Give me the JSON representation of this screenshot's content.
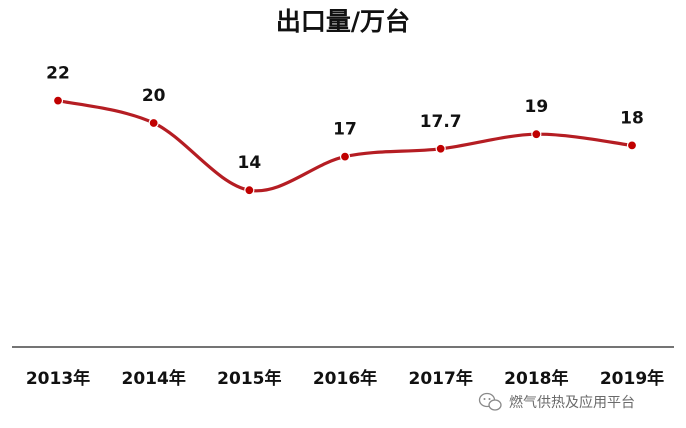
{
  "chart_data": {
    "type": "line",
    "title": "出口量/万台",
    "categories": [
      "2013年",
      "2014年",
      "2015年",
      "2016年",
      "2017年",
      "2018年",
      "2019年"
    ],
    "series": [
      {
        "values": [
          22,
          20,
          14,
          17,
          17.7,
          19,
          18
        ]
      }
    ],
    "data_labels": [
      "22",
      "20",
      "14",
      "17",
      "17.7",
      "19",
      "18"
    ],
    "ylim": [
      0,
      27
    ],
    "grid": false,
    "legend": "none",
    "line_color": "#b51d23",
    "marker_color": "#c00000"
  },
  "watermark": {
    "text": "燃气供热及应用平台",
    "icon": "wechat-icon"
  }
}
